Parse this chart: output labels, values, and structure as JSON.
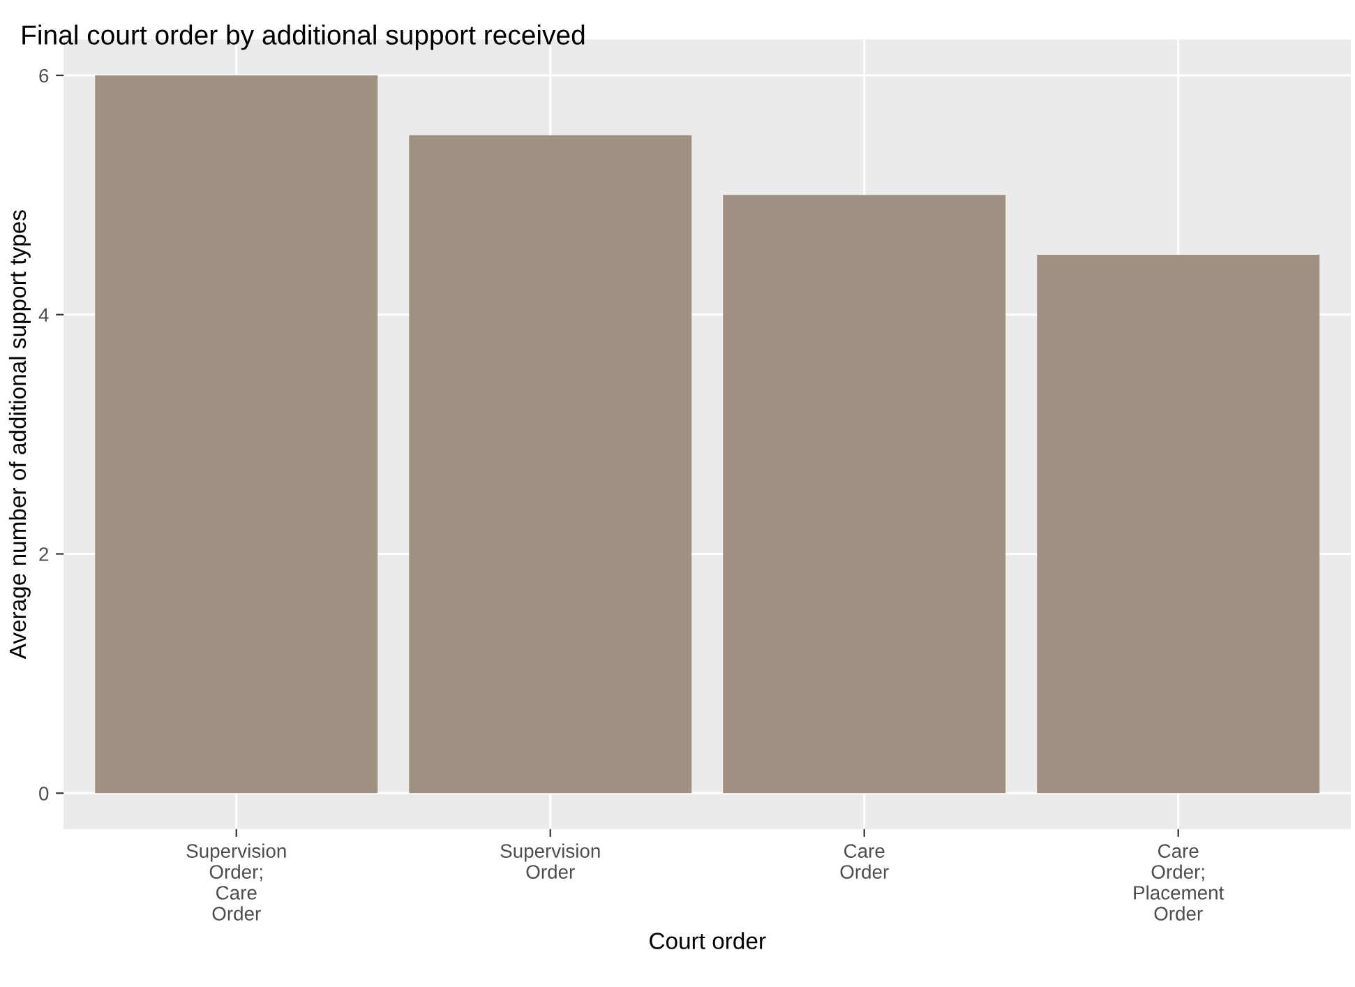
{
  "chart_data": {
    "type": "bar",
    "title": "Final court order by additional support received",
    "xlabel": "Court order",
    "ylabel": "Average number of additional support types",
    "categories": [
      "Supervision\nOrder;\nCare\nOrder",
      "Supervision\nOrder",
      "Care\nOrder",
      "Care\nOrder;\nPlacement\nOrder"
    ],
    "values": [
      6,
      5.5,
      5,
      4.5
    ],
    "color": "#a09282",
    "ylim": [
      -0.3,
      6.3
    ],
    "yticks": [
      0,
      2,
      4,
      6
    ],
    "grid": true
  }
}
